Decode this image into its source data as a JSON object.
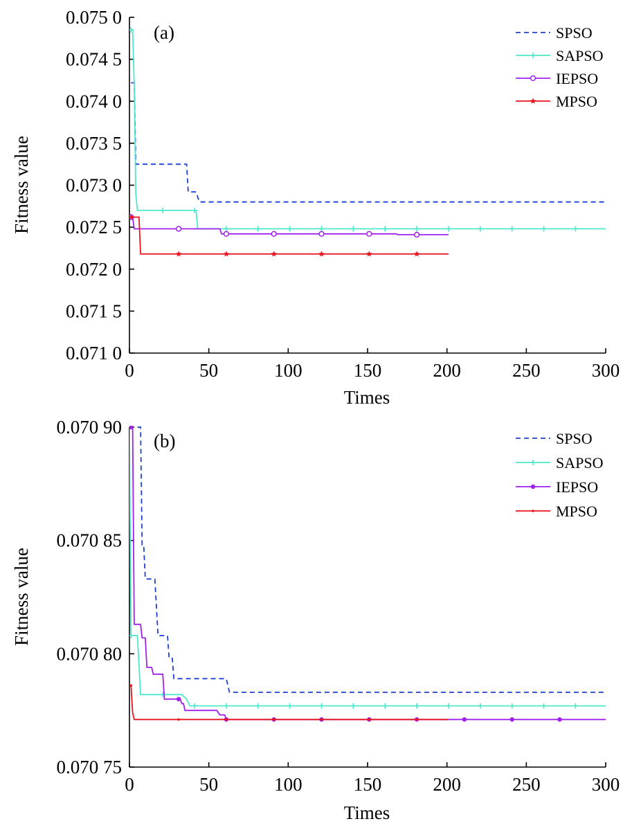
{
  "chart_data": [
    {
      "type": "line",
      "panel_label": "(a)",
      "xlabel": "Times",
      "ylabel": "Fitness value",
      "xlim": [
        0,
        300
      ],
      "ylim": [
        0.071,
        0.075
      ],
      "xticks": [
        0,
        50,
        100,
        150,
        200,
        250,
        300
      ],
      "xtick_labels": [
        "0",
        "50",
        "100",
        "150",
        "200",
        "250",
        "300"
      ],
      "yticks": [
        0.071,
        0.0715,
        0.072,
        0.0725,
        0.073,
        0.0735,
        0.074,
        0.0745,
        0.075
      ],
      "ytick_labels": [
        "0.071 0",
        "0.071 5",
        "0.072 0",
        "0.072 5",
        "0.073 0",
        "0.073 5",
        "0.074 0",
        "0.074 5",
        "0.075 0"
      ],
      "legend_position": "top-right",
      "series": [
        {
          "name": "SPSO",
          "color": "#1f3fd6",
          "dash": "dashed",
          "marker": "none",
          "points": [
            [
              1,
              0.07422
            ],
            [
              3,
              0.07422
            ],
            [
              4,
              0.07325
            ],
            [
              36,
              0.07325
            ],
            [
              37,
              0.07292
            ],
            [
              42,
              0.07292
            ],
            [
              44,
              0.0728
            ],
            [
              300,
              0.0728
            ]
          ],
          "marker_x": []
        },
        {
          "name": "SAPSO",
          "color": "#4de8cc",
          "dash": "solid",
          "marker": "plus",
          "points": [
            [
              0,
              0.07485
            ],
            [
              2,
              0.07485
            ],
            [
              3,
              0.0742
            ],
            [
              4,
              0.0729
            ],
            [
              5,
              0.0727
            ],
            [
              42,
              0.0727
            ],
            [
              43,
              0.07248
            ],
            [
              300,
              0.07248
            ]
          ],
          "marker_x": [
            1,
            21,
            41,
            61,
            81,
            101,
            121,
            141,
            161,
            181,
            201,
            221,
            241,
            261,
            281
          ]
        },
        {
          "name": "IEPSO",
          "color": "#a020f0",
          "dash": "solid",
          "marker": "circle",
          "points": [
            [
              0,
              0.07262
            ],
            [
              2,
              0.07262
            ],
            [
              3,
              0.07248
            ],
            [
              57,
              0.07248
            ],
            [
              58,
              0.07242
            ],
            [
              168,
              0.07242
            ],
            [
              169,
              0.07241
            ],
            [
              201,
              0.07241
            ]
          ],
          "marker_x": [
            1,
            31,
            61,
            91,
            121,
            151,
            181
          ]
        },
        {
          "name": "MPSO",
          "color": "#e8141e",
          "dash": "solid",
          "marker": "star",
          "points": [
            [
              0,
              0.07262
            ],
            [
              6,
              0.07262
            ],
            [
              7,
              0.07218
            ],
            [
              201,
              0.07218
            ]
          ],
          "marker_x": [
            1,
            31,
            61,
            91,
            121,
            151,
            181
          ]
        }
      ]
    },
    {
      "type": "line",
      "panel_label": "(b)",
      "xlabel": "Times",
      "ylabel": "Fitness value",
      "xlim": [
        0,
        300
      ],
      "ylim": [
        0.07075,
        0.0709
      ],
      "xticks": [
        0,
        50,
        100,
        150,
        200,
        250,
        300
      ],
      "xtick_labels": [
        "0",
        "50",
        "100",
        "150",
        "200",
        "250",
        "300"
      ],
      "yticks": [
        0.07075,
        0.0708,
        0.07085,
        0.0709
      ],
      "ytick_labels": [
        "0.070 75",
        "0.070 80",
        "0.070 85",
        "0.070 90"
      ],
      "legend_position": "top-right",
      "series": [
        {
          "name": "SPSO",
          "color": "#1f3fd6",
          "dash": "dashed",
          "marker": "none",
          "points": [
            [
              5,
              0.0709
            ],
            [
              7,
              0.0709
            ],
            [
              8,
              0.070848
            ],
            [
              9,
              0.070848
            ],
            [
              10,
              0.070833
            ],
            [
              16,
              0.070833
            ],
            [
              18,
              0.070808
            ],
            [
              24,
              0.070808
            ],
            [
              25,
              0.070798
            ],
            [
              27,
              0.070798
            ],
            [
              28,
              0.070789
            ],
            [
              61,
              0.070789
            ],
            [
              63,
              0.070783
            ],
            [
              300,
              0.070783
            ]
          ],
          "marker_x": []
        },
        {
          "name": "SAPSO",
          "color": "#4de8cc",
          "dash": "solid",
          "marker": "plus",
          "points": [
            [
              0,
              0.0709
            ],
            [
              1,
              0.070808
            ],
            [
              5,
              0.070808
            ],
            [
              7,
              0.070782
            ],
            [
              33,
              0.070782
            ],
            [
              36,
              0.07078
            ],
            [
              38,
              0.070777
            ],
            [
              300,
              0.070777
            ]
          ],
          "marker_x": [
            1,
            21,
            41,
            61,
            81,
            101,
            121,
            141,
            161,
            181,
            201,
            221,
            241,
            261,
            281
          ]
        },
        {
          "name": "IEPSO",
          "color": "#a020f0",
          "dash": "solid",
          "marker": "circle-filled",
          "points": [
            [
              0,
              0.0709
            ],
            [
              2,
              0.0709
            ],
            [
              3,
              0.070813
            ],
            [
              7,
              0.070813
            ],
            [
              8,
              0.070807
            ],
            [
              10,
              0.070807
            ],
            [
              11,
              0.070794
            ],
            [
              14,
              0.070794
            ],
            [
              15,
              0.070791
            ],
            [
              21,
              0.070791
            ],
            [
              22,
              0.07078
            ],
            [
              32,
              0.07078
            ],
            [
              33,
              0.070778
            ],
            [
              34,
              0.070778
            ],
            [
              35,
              0.070775
            ],
            [
              55,
              0.070775
            ],
            [
              57,
              0.070773
            ],
            [
              60,
              0.070773
            ],
            [
              61,
              0.070771
            ],
            [
              300,
              0.070771
            ]
          ],
          "marker_x": [
            1,
            31,
            61,
            91,
            121,
            151,
            181,
            211,
            241,
            271
          ]
        },
        {
          "name": "MPSO",
          "color": "#e8141e",
          "dash": "solid",
          "marker": "dot",
          "points": [
            [
              0,
              0.070786
            ],
            [
              1,
              0.070786
            ],
            [
              2,
              0.070774
            ],
            [
              3,
              0.070771
            ],
            [
              201,
              0.070771
            ]
          ],
          "marker_x": [
            1,
            31,
            61,
            91,
            121,
            151,
            181
          ]
        }
      ]
    }
  ]
}
